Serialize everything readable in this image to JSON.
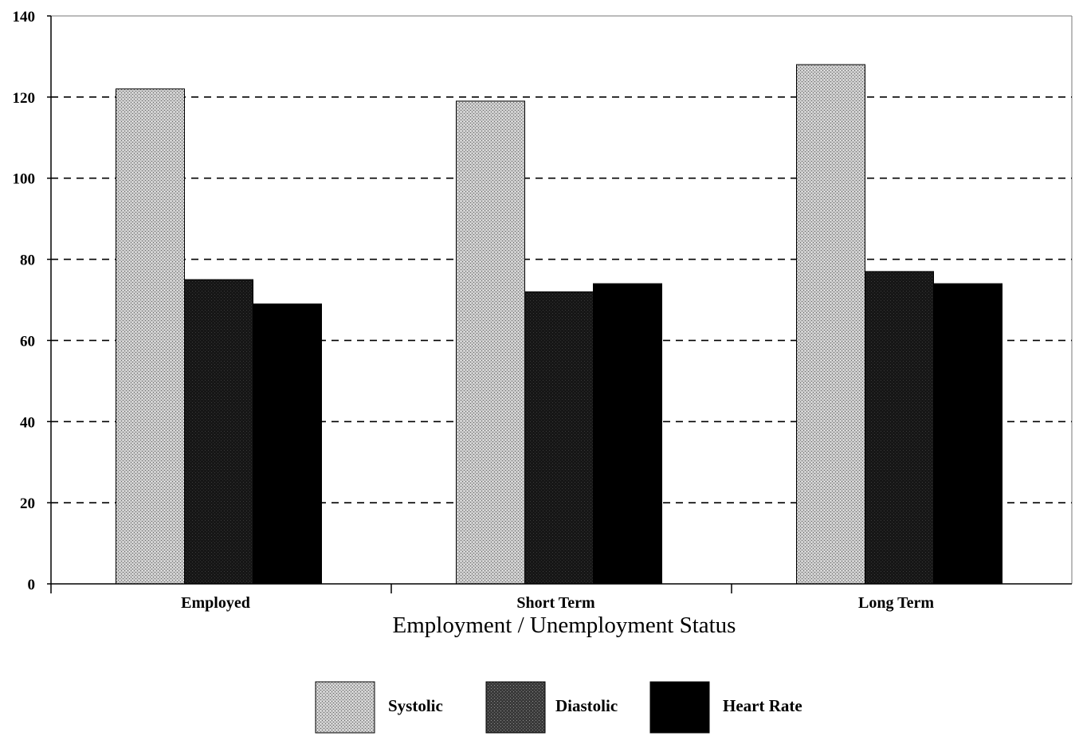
{
  "chart_data": {
    "type": "bar",
    "xlabel": "Employment / Unemployment Status",
    "ylabel": "",
    "ylim": [
      0,
      140
    ],
    "yticks": [
      0,
      20,
      40,
      60,
      80,
      100,
      120,
      140
    ],
    "grid": true,
    "legend_position": "bottom",
    "categories": [
      "Employed",
      "Short Term",
      "Long Term"
    ],
    "series": [
      {
        "name": "Systolic",
        "values": [
          122,
          119,
          128
        ],
        "color": "#b8b8b8",
        "pattern": "light"
      },
      {
        "name": "Diastolic",
        "values": [
          75,
          72,
          77
        ],
        "color": "#1a1a1a",
        "pattern": "dark"
      },
      {
        "name": "Heart Rate",
        "values": [
          69,
          74,
          74
        ],
        "color": "#000000",
        "pattern": "solid"
      }
    ]
  }
}
